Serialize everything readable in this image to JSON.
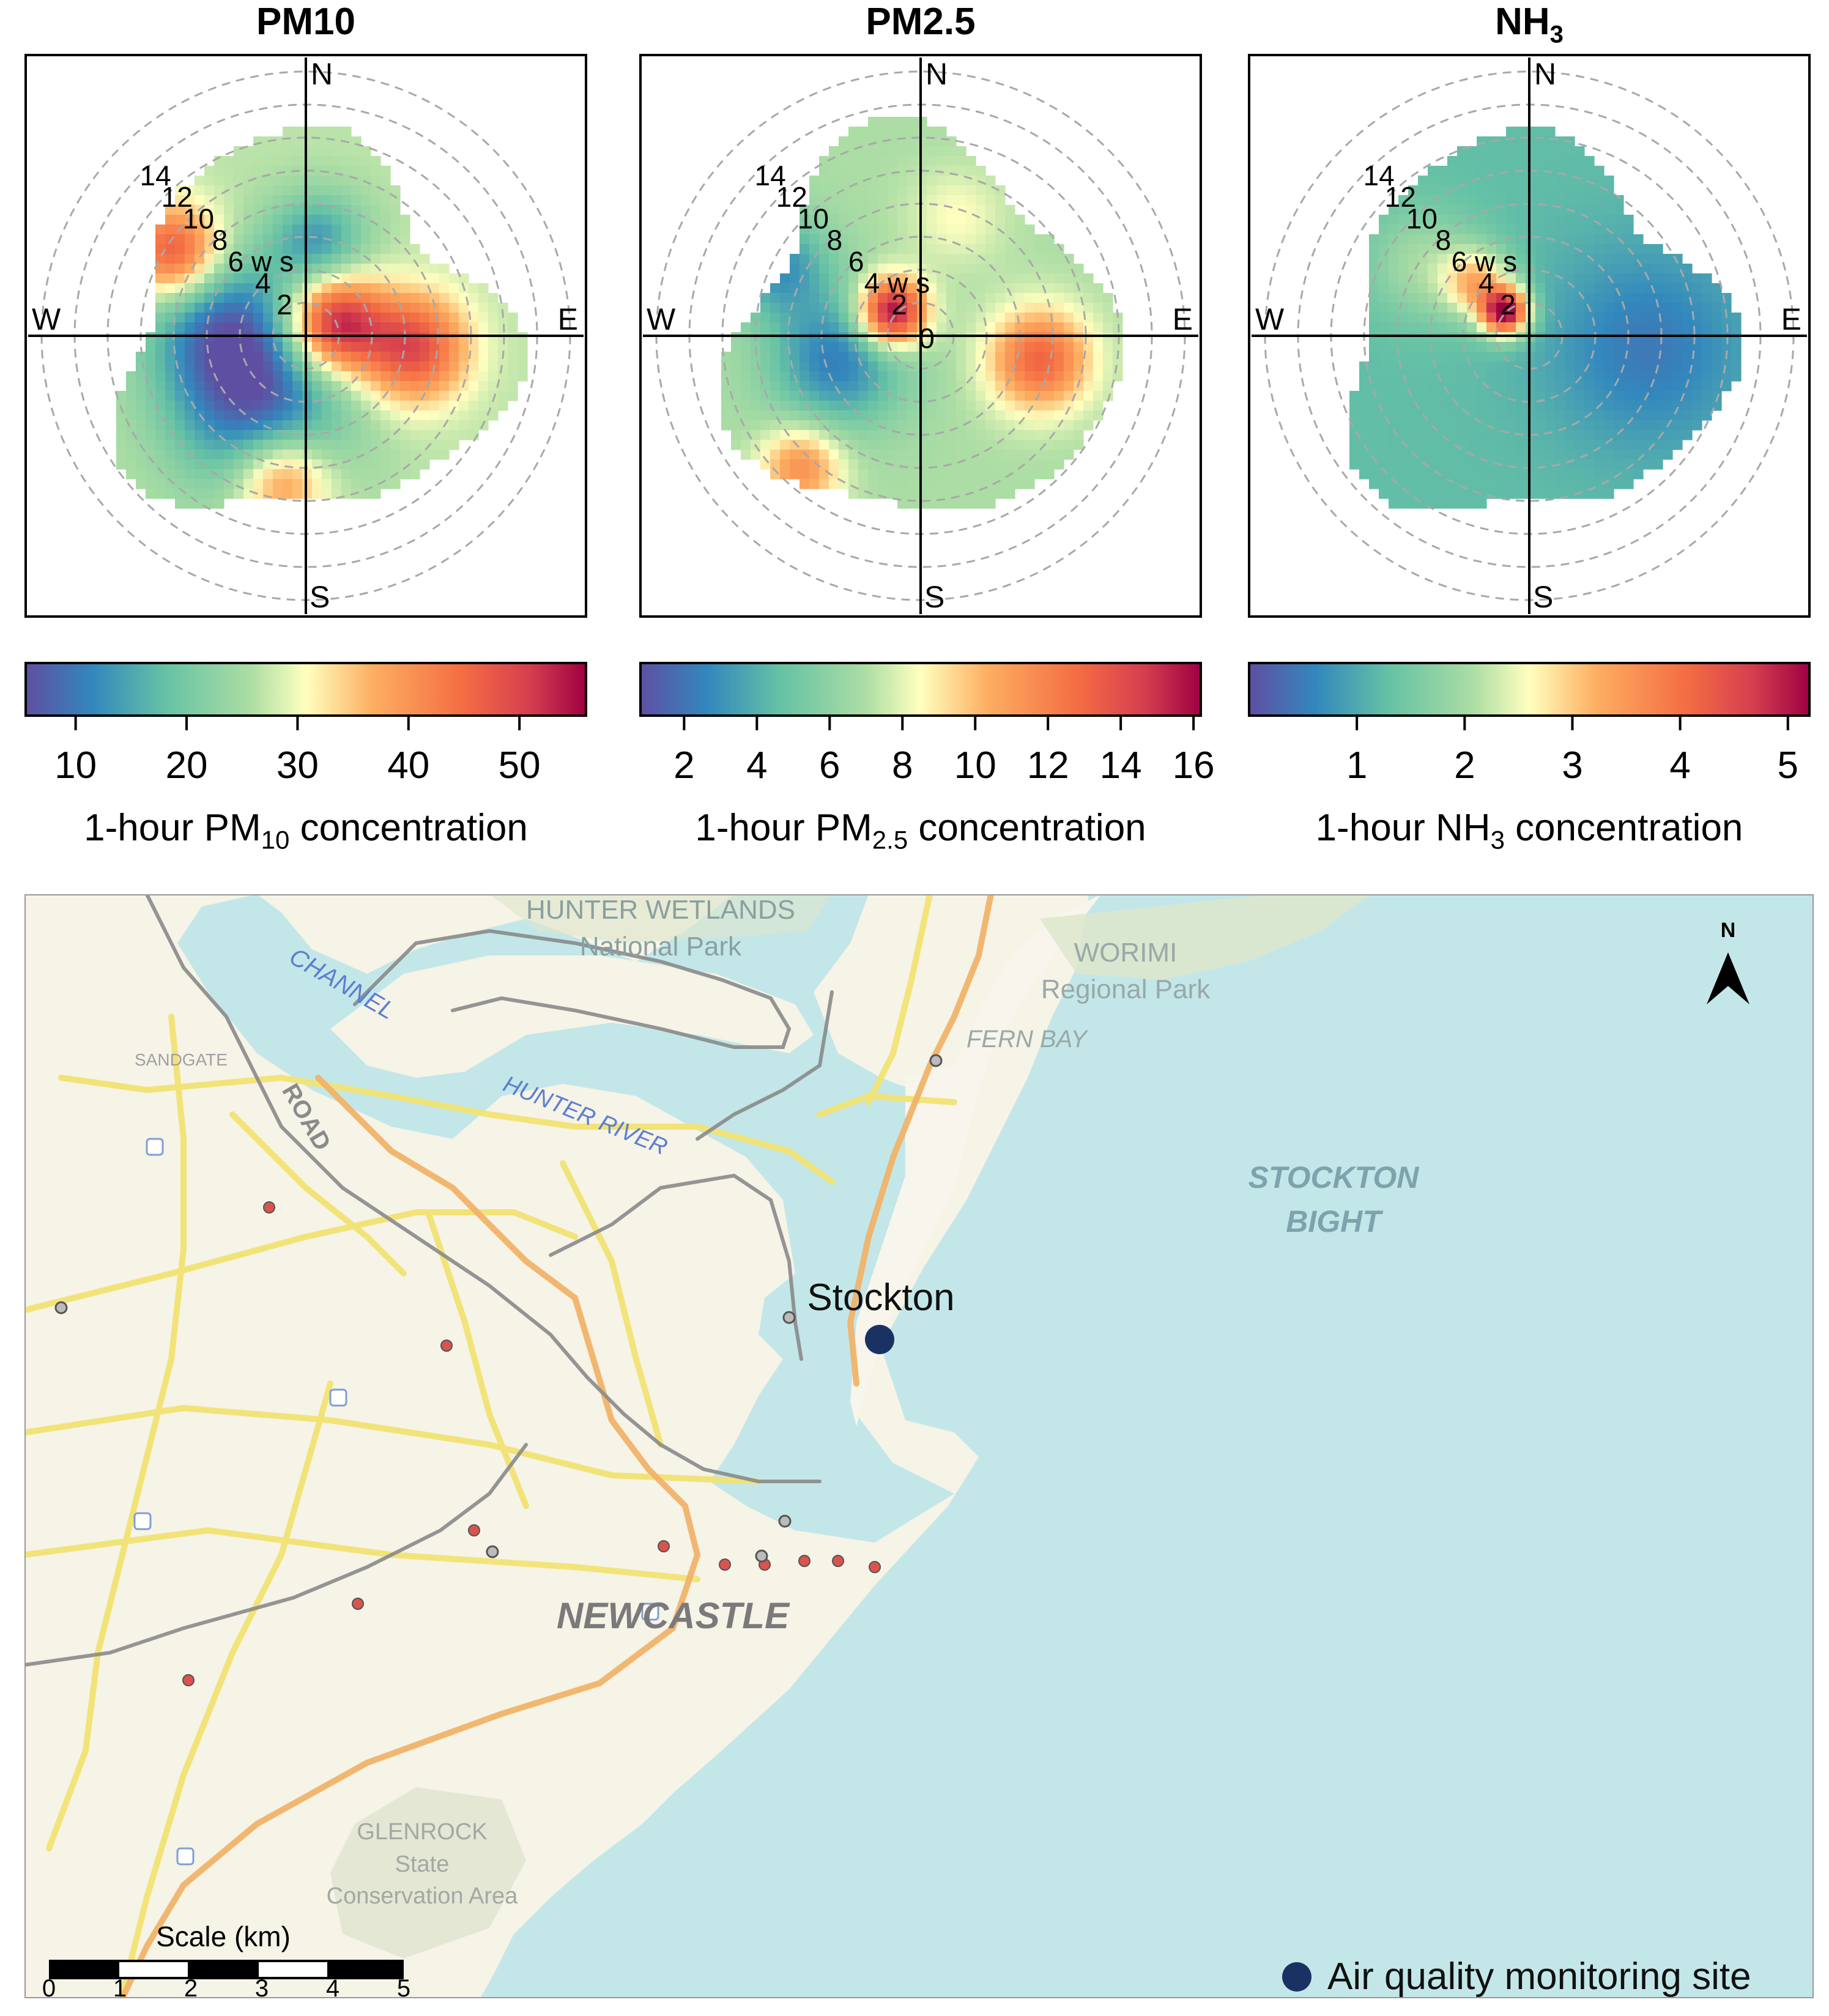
{
  "panels": [
    {
      "id": "pm10",
      "title_main": "PM10",
      "title_sub": "",
      "compass": {
        "n": "N",
        "s": "S",
        "e": "E",
        "w": "W"
      },
      "ring_labels": [
        "2",
        "4",
        "6 w s",
        "8",
        "10",
        "12",
        "14"
      ],
      "colorbar_ticks": [
        "10",
        "20",
        "30",
        "40",
        "50"
      ],
      "colorbar_range": [
        5.5,
        56
      ],
      "colorbar_label_pre": "1-hour PM",
      "colorbar_label_sub": "10",
      "colorbar_label_post": " concentration"
    },
    {
      "id": "pm25",
      "title_main": "PM2.5",
      "title_sub": "",
      "compass": {
        "n": "N",
        "s": "S",
        "e": "E",
        "w": "W"
      },
      "ring_labels": [
        "0",
        "2",
        "4 w s",
        "6",
        "8",
        "10",
        "12",
        "14"
      ],
      "colorbar_ticks": [
        "2",
        "4",
        "6",
        "8",
        "10",
        "12",
        "14",
        "16"
      ],
      "colorbar_range": [
        0.8,
        16.2
      ],
      "colorbar_label_pre": "1-hour PM",
      "colorbar_label_sub": "2.5",
      "colorbar_label_post": " concentration"
    },
    {
      "id": "nh3",
      "title_main": "NH",
      "title_sub": "3",
      "compass": {
        "n": "N",
        "s": "S",
        "e": "E",
        "w": "W"
      },
      "ring_labels": [
        "2",
        "4",
        "6 w s",
        "8",
        "10",
        "12",
        "14"
      ],
      "colorbar_ticks": [
        "1",
        "2",
        "3",
        "4",
        "5"
      ],
      "colorbar_range": [
        0,
        5.2
      ],
      "colorbar_label_pre": "1-hour NH",
      "colorbar_label_sub": "3",
      "colorbar_label_post": " concentration"
    }
  ],
  "map": {
    "labels": {
      "hunter_wetlands": "HUNTER WETLANDS",
      "national_park": "National Park",
      "worimi": "WORIMI",
      "regional_park": "Regional Park",
      "fern_bay": "FERN BAY",
      "stockton_bight_1": "STOCKTON",
      "stockton_bight_2": "BIGHT",
      "newcastle": "NEWCASTLE",
      "glenrock_1": "GLENROCK",
      "glenrock_2": "State",
      "glenrock_3": "Conservation Area",
      "hunter_river": "HUNTER RIVER",
      "channel": "CHANNEL",
      "road": "ROAD",
      "sandgate": "SANDGATE",
      "stockton": "Stockton"
    },
    "north_arrow": "N",
    "scale_title": "Scale (km)",
    "scale_ticks": [
      "0",
      "1",
      "2",
      "3",
      "4",
      "5"
    ],
    "legend_label": "Air quality monitoring site",
    "site_color": "#1a3263",
    "sea_color": "#c3e7e8",
    "land_color": "#f6f3e7",
    "road_color": "#f2e374",
    "motorway_color": "#f0b36a"
  }
}
